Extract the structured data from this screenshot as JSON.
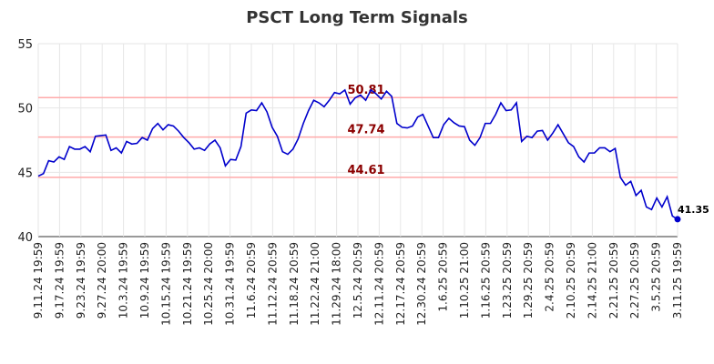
{
  "chart_data": {
    "type": "line",
    "title": "PSCT Long Term Signals",
    "xlabel": "",
    "ylabel": "",
    "ylim": [
      40,
      55
    ],
    "yticks": [
      40,
      45,
      50,
      55
    ],
    "grid": true,
    "x_tick_labels": [
      "9.11.24 19:59",
      "9.17.24 19:59",
      "9.23.24 19:59",
      "9.27.24 20:00",
      "10.3.24 19:59",
      "10.9.24 19:59",
      "10.15.24 19:59",
      "10.21.24 19:59",
      "10.25.24 20:00",
      "10.31.24 19:59",
      "11.6.24 20:59",
      "11.12.24 20:59",
      "11.18.24 20:59",
      "11.22.24 21:00",
      "11.29.24 18:00",
      "12.5.24 20:59",
      "12.11.24 20:59",
      "12.17.24 20:59",
      "12.30.24 20:59",
      "1.6.25 20:59",
      "1.10.25 21:00",
      "1.16.25 20:59",
      "1.23.25 20:59",
      "1.29.25 20:59",
      "2.4.25 20:59",
      "2.10.25 20:59",
      "2.14.25 21:00",
      "2.21.25 20:59",
      "2.27.25 20:59",
      "3.5.25 20:59",
      "3.11.25 19:59"
    ],
    "series": [
      {
        "color": "#0000cc",
        "values": [
          44.7,
          44.9,
          45.9,
          45.8,
          46.2,
          46.0,
          47.0,
          46.8,
          46.8,
          47.0,
          46.6,
          47.8,
          47.85,
          47.9,
          46.7,
          46.9,
          46.5,
          47.4,
          47.2,
          47.25,
          47.7,
          47.5,
          48.4,
          48.8,
          48.3,
          48.7,
          48.6,
          48.2,
          47.7,
          47.3,
          46.8,
          46.9,
          46.7,
          47.2,
          47.5,
          46.9,
          45.5,
          46.0,
          45.95,
          47.0,
          49.6,
          49.85,
          49.8,
          50.4,
          49.7,
          48.5,
          47.8,
          46.6,
          46.4,
          46.8,
          47.6,
          48.8,
          49.8,
          50.6,
          50.4,
          50.1,
          50.6,
          51.2,
          51.1,
          51.4,
          50.3,
          50.8,
          51.0,
          50.6,
          51.4,
          51.1,
          50.7,
          51.3,
          50.9,
          48.8,
          48.5,
          48.45,
          48.6,
          49.3,
          49.5,
          48.6,
          47.7,
          47.7,
          48.7,
          49.2,
          48.85,
          48.6,
          48.55,
          47.5,
          47.1,
          47.7,
          48.8,
          48.8,
          49.5,
          50.4,
          49.8,
          49.85,
          50.4,
          47.4,
          47.8,
          47.7,
          48.2,
          48.25,
          47.5,
          48.05,
          48.7,
          48.0,
          47.3,
          47.0,
          46.2,
          45.8,
          46.5,
          46.5,
          46.9,
          46.9,
          46.6,
          46.85,
          44.6,
          44.0,
          44.3,
          43.2,
          43.6,
          42.3,
          42.1,
          43.0,
          42.3,
          43.1,
          41.6,
          41.35
        ]
      }
    ],
    "levels": [
      {
        "value": 50.81,
        "label": "50.81"
      },
      {
        "value": 47.74,
        "label": "47.74"
      },
      {
        "value": 44.61,
        "label": "44.61"
      }
    ],
    "last_label": "41.35",
    "colors": {
      "line": "#0000cc",
      "level": "#ffaaaa",
      "level_text": "#8b0000",
      "grid": "#e6e6e6"
    }
  }
}
